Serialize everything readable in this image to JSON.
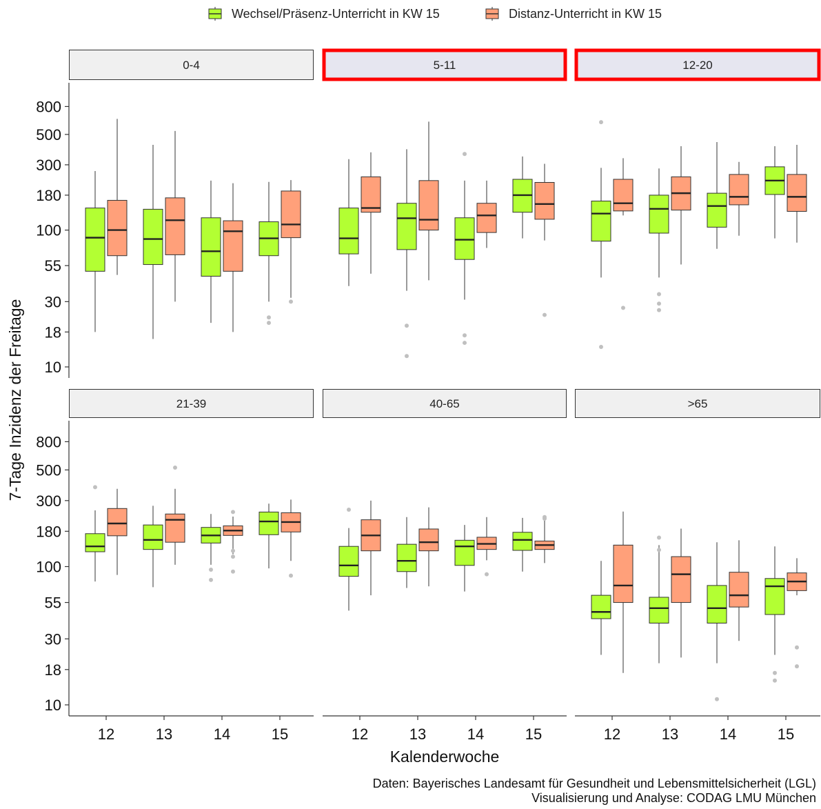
{
  "legend": {
    "items": [
      {
        "label": "Wechsel/Präsenz-Unterricht in KW 15",
        "color": "#b3ff33"
      },
      {
        "label": "Distanz-Unterricht in KW 15",
        "color": "#ffa07a"
      }
    ]
  },
  "caption": {
    "line1": "Daten: Bayerisches Landesamt für Gesundheit und Lebensmittelsicherheit (LGL)",
    "line2": "Visualisierung und Analyse: CODAG LMU München"
  },
  "colors": {
    "highlight_border": "#ff0000",
    "strip_fill": "#f0f0f0",
    "strip_fill_highlight": "#e6e6f0",
    "outlier": "#c0c0c0"
  },
  "chart_data": {
    "type": "boxplot",
    "xlabel": "Kalenderwoche",
    "ylabel": "7-Tage Inzidenz der Freitage",
    "y_scale": "log",
    "ylim": [
      8.5,
      900
    ],
    "y_ticks": [
      10,
      18,
      30,
      55,
      100,
      180,
      300,
      500,
      800
    ],
    "categories": [
      "12",
      "13",
      "14",
      "15"
    ],
    "series_names": [
      "Wechsel/Präsenz-Unterricht in KW 15",
      "Distanz-Unterricht in KW 15"
    ],
    "facets": [
      {
        "label": "0-4",
        "highlighted": false,
        "boxes": [
          {
            "week": "12",
            "series": 0,
            "min": 18,
            "q1": 50,
            "median": 88,
            "q3": 145,
            "max": 270,
            "outliers": []
          },
          {
            "week": "12",
            "series": 1,
            "min": 47,
            "q1": 65,
            "median": 100,
            "q3": 165,
            "max": 650,
            "outliers": []
          },
          {
            "week": "13",
            "series": 0,
            "min": 16,
            "q1": 56,
            "median": 86,
            "q3": 142,
            "max": 420,
            "outliers": []
          },
          {
            "week": "13",
            "series": 1,
            "min": 30,
            "q1": 66,
            "median": 118,
            "q3": 172,
            "max": 530,
            "outliers": []
          },
          {
            "week": "14",
            "series": 0,
            "min": 21,
            "q1": 46,
            "median": 70,
            "q3": 123,
            "max": 230,
            "outliers": []
          },
          {
            "week": "14",
            "series": 1,
            "min": 18,
            "q1": 50,
            "median": 98,
            "q3": 117,
            "max": 220,
            "outliers": []
          },
          {
            "week": "15",
            "series": 0,
            "min": 30,
            "q1": 65,
            "median": 87,
            "q3": 115,
            "max": 225,
            "outliers": [
              21,
              23
            ]
          },
          {
            "week": "15",
            "series": 1,
            "min": 32,
            "q1": 88,
            "median": 110,
            "q3": 193,
            "max": 232,
            "outliers": [
              30
            ]
          }
        ]
      },
      {
        "label": "5-11",
        "highlighted": true,
        "boxes": [
          {
            "week": "12",
            "series": 0,
            "min": 39,
            "q1": 67,
            "median": 87,
            "q3": 145,
            "max": 330,
            "outliers": []
          },
          {
            "week": "12",
            "series": 1,
            "min": 48,
            "q1": 135,
            "median": 145,
            "q3": 245,
            "max": 370,
            "outliers": []
          },
          {
            "week": "13",
            "series": 0,
            "min": 36,
            "q1": 72,
            "median": 122,
            "q3": 157,
            "max": 390,
            "outliers": [
              12,
              20
            ]
          },
          {
            "week": "13",
            "series": 1,
            "min": 43,
            "q1": 100,
            "median": 119,
            "q3": 230,
            "max": 620,
            "outliers": []
          },
          {
            "week": "14",
            "series": 0,
            "min": 31,
            "q1": 61,
            "median": 85,
            "q3": 123,
            "max": 230,
            "outliers": [
              15,
              17,
              360
            ]
          },
          {
            "week": "14",
            "series": 1,
            "min": 74,
            "q1": 96,
            "median": 128,
            "q3": 157,
            "max": 230,
            "outliers": []
          },
          {
            "week": "15",
            "series": 0,
            "min": 87,
            "q1": 135,
            "median": 180,
            "q3": 235,
            "max": 345,
            "outliers": []
          },
          {
            "week": "15",
            "series": 1,
            "min": 84,
            "q1": 120,
            "median": 155,
            "q3": 223,
            "max": 305,
            "outliers": [
              24
            ]
          }
        ]
      },
      {
        "label": "12-20",
        "highlighted": true,
        "boxes": [
          {
            "week": "12",
            "series": 0,
            "min": 45,
            "q1": 83,
            "median": 132,
            "q3": 163,
            "max": 285,
            "outliers": [
              14,
              615
            ]
          },
          {
            "week": "12",
            "series": 1,
            "min": 128,
            "q1": 138,
            "median": 157,
            "q3": 235,
            "max": 335,
            "outliers": [
              27
            ]
          },
          {
            "week": "13",
            "series": 0,
            "min": 45,
            "q1": 95,
            "median": 143,
            "q3": 180,
            "max": 282,
            "outliers": [
              26,
              29,
              34
            ]
          },
          {
            "week": "13",
            "series": 1,
            "min": 56,
            "q1": 140,
            "median": 186,
            "q3": 245,
            "max": 410,
            "outliers": []
          },
          {
            "week": "14",
            "series": 0,
            "min": 73,
            "q1": 105,
            "median": 150,
            "q3": 186,
            "max": 440,
            "outliers": []
          },
          {
            "week": "14",
            "series": 1,
            "min": 91,
            "q1": 153,
            "median": 175,
            "q3": 255,
            "max": 315,
            "outliers": []
          },
          {
            "week": "15",
            "series": 0,
            "min": 87,
            "q1": 182,
            "median": 230,
            "q3": 290,
            "max": 410,
            "outliers": []
          },
          {
            "week": "15",
            "series": 1,
            "min": 81,
            "q1": 137,
            "median": 175,
            "q3": 255,
            "max": 420,
            "outliers": []
          }
        ]
      },
      {
        "label": "21-39",
        "highlighted": false,
        "boxes": [
          {
            "week": "12",
            "series": 0,
            "min": 78,
            "q1": 128,
            "median": 140,
            "q3": 173,
            "max": 255,
            "outliers": [
              375
            ]
          },
          {
            "week": "12",
            "series": 1,
            "min": 87,
            "q1": 167,
            "median": 205,
            "q3": 263,
            "max": 365,
            "outliers": []
          },
          {
            "week": "13",
            "series": 0,
            "min": 71,
            "q1": 133,
            "median": 156,
            "q3": 200,
            "max": 275,
            "outliers": []
          },
          {
            "week": "13",
            "series": 1,
            "min": 103,
            "q1": 150,
            "median": 218,
            "q3": 240,
            "max": 365,
            "outliers": [
              520
            ]
          },
          {
            "week": "14",
            "series": 0,
            "min": 103,
            "q1": 148,
            "median": 168,
            "q3": 192,
            "max": 240,
            "outliers": [
              80,
              95
            ]
          },
          {
            "week": "14",
            "series": 1,
            "min": 123,
            "q1": 168,
            "median": 182,
            "q3": 197,
            "max": 230,
            "outliers": [
              92,
              118,
              130,
              248
            ]
          },
          {
            "week": "15",
            "series": 0,
            "min": 97,
            "q1": 170,
            "median": 212,
            "q3": 248,
            "max": 285,
            "outliers": []
          },
          {
            "week": "15",
            "series": 1,
            "min": 110,
            "q1": 178,
            "median": 210,
            "q3": 245,
            "max": 305,
            "outliers": [
              86
            ]
          }
        ]
      },
      {
        "label": "40-65",
        "highlighted": false,
        "boxes": [
          {
            "week": "12",
            "series": 0,
            "min": 48,
            "q1": 85,
            "median": 102,
            "q3": 140,
            "max": 190,
            "outliers": [
              258
            ]
          },
          {
            "week": "12",
            "series": 1,
            "min": 62,
            "q1": 130,
            "median": 168,
            "q3": 218,
            "max": 300,
            "outliers": []
          },
          {
            "week": "13",
            "series": 0,
            "min": 70,
            "q1": 92,
            "median": 110,
            "q3": 145,
            "max": 228,
            "outliers": []
          },
          {
            "week": "13",
            "series": 1,
            "min": 72,
            "q1": 130,
            "median": 150,
            "q3": 187,
            "max": 268,
            "outliers": []
          },
          {
            "week": "14",
            "series": 0,
            "min": 66,
            "q1": 102,
            "median": 140,
            "q3": 155,
            "max": 200,
            "outliers": []
          },
          {
            "week": "14",
            "series": 1,
            "min": 111,
            "q1": 133,
            "median": 146,
            "q3": 163,
            "max": 228,
            "outliers": [
              88
            ]
          },
          {
            "week": "15",
            "series": 0,
            "min": 92,
            "q1": 131,
            "median": 156,
            "q3": 177,
            "max": 225,
            "outliers": []
          },
          {
            "week": "15",
            "series": 1,
            "min": 106,
            "q1": 133,
            "median": 143,
            "q3": 153,
            "max": 215,
            "outliers": [
              222,
              228
            ]
          }
        ]
      },
      {
        "label": ">65",
        "highlighted": false,
        "boxes": [
          {
            "week": "12",
            "series": 0,
            "min": 23,
            "q1": 42,
            "median": 47,
            "q3": 62,
            "max": 110,
            "outliers": []
          },
          {
            "week": "12",
            "series": 1,
            "min": 17,
            "q1": 55,
            "median": 73,
            "q3": 143,
            "max": 250,
            "outliers": []
          },
          {
            "week": "13",
            "series": 0,
            "min": 20,
            "q1": 39,
            "median": 50,
            "q3": 60,
            "max": 143,
            "outliers": [
              132,
              162
            ]
          },
          {
            "week": "13",
            "series": 1,
            "min": 22,
            "q1": 55,
            "median": 88,
            "q3": 118,
            "max": 188,
            "outliers": []
          },
          {
            "week": "14",
            "series": 0,
            "min": 20,
            "q1": 39,
            "median": 50,
            "q3": 73,
            "max": 150,
            "outliers": [
              11
            ]
          },
          {
            "week": "14",
            "series": 1,
            "min": 29,
            "q1": 51,
            "median": 62,
            "q3": 91,
            "max": 155,
            "outliers": []
          },
          {
            "week": "15",
            "series": 0,
            "min": 23,
            "q1": 45,
            "median": 72,
            "q3": 82,
            "max": 140,
            "outliers": [
              15,
              17
            ]
          },
          {
            "week": "15",
            "series": 1,
            "min": 62,
            "q1": 67,
            "median": 78,
            "q3": 90,
            "max": 115,
            "outliers": [
              19,
              26
            ]
          }
        ]
      }
    ]
  }
}
